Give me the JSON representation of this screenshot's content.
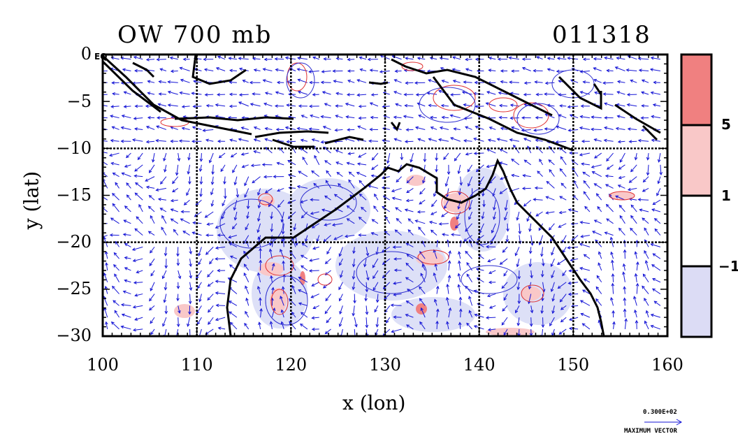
{
  "title_left": "OW 700 mb",
  "title_right": "011318",
  "eq_label": "EQ",
  "x_axis": {
    "label": "x (lon)",
    "range": [
      100,
      160
    ],
    "ticks": [
      "100",
      "110",
      "120",
      "130",
      "140",
      "150",
      "160"
    ]
  },
  "y_axis": {
    "label": "y (lat)",
    "range": [
      -30,
      0
    ],
    "ticks": [
      "0",
      "−5",
      "−10",
      "−15",
      "−20",
      "−25",
      "−30"
    ]
  },
  "gridlines": {
    "lon": [
      110,
      120,
      130,
      140,
      150
    ],
    "lat": [
      -10,
      -20
    ]
  },
  "colorbar": {
    "levels": [
      "5",
      "1",
      "−1"
    ],
    "colors": [
      "#f08080",
      "#f9c8c8",
      "#ffffff",
      "#dcdcf5"
    ]
  },
  "vector_legend": {
    "max_value": "0.300E+02",
    "label": "MAXIMUM VECTOR"
  },
  "colors": {
    "vector": "#1515d6",
    "positive": "#e03030",
    "negative": "#3030d0",
    "coast": "#000000"
  }
}
